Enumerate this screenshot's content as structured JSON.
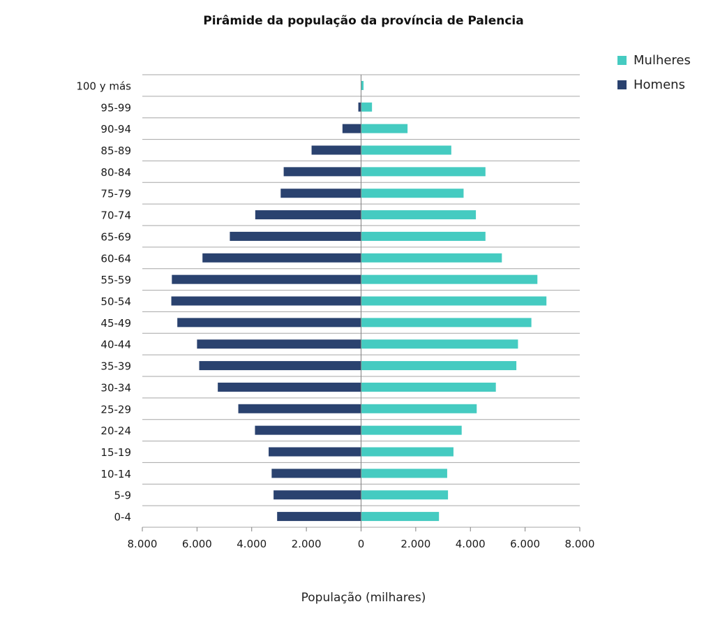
{
  "chart_data": {
    "type": "bar",
    "orientation": "horizontal-population-pyramid",
    "title": "Pirâmide da população da província de Palencia",
    "xlabel": "População (milhares)",
    "ylabel": "",
    "xlim": [
      -8000,
      8000
    ],
    "x_ticks": [
      -8000,
      -6000,
      -4000,
      -2000,
      0,
      2000,
      4000,
      6000,
      8000
    ],
    "x_tick_labels": [
      "8.000",
      "6.000",
      "4.000",
      "2.000",
      "0",
      "2.000",
      "4.000",
      "6.000",
      "8.000"
    ],
    "categories": [
      "100 y más",
      "95-99",
      "90-94",
      "85-89",
      "80-84",
      "75-79",
      "70-74",
      "65-69",
      "60-64",
      "55-59",
      "50-54",
      "45-49",
      "40-44",
      "35-39",
      "30-34",
      "25-29",
      "20-24",
      "15-19",
      "10-14",
      "5-9",
      "0-4"
    ],
    "series": [
      {
        "name": "Mulheres",
        "color": "#45cbc1",
        "side": "right",
        "values": [
          90,
          400,
          1700,
          3300,
          4550,
          3750,
          4200,
          4550,
          5150,
          6450,
          6780,
          6230,
          5740,
          5680,
          4930,
          4230,
          3680,
          3380,
          3150,
          3180,
          2850
        ]
      },
      {
        "name": "Homens",
        "color": "#2a426f",
        "side": "left",
        "values": [
          0,
          100,
          680,
          1810,
          2830,
          2940,
          3870,
          4800,
          5800,
          6920,
          6940,
          6720,
          6000,
          5920,
          5240,
          4490,
          3880,
          3380,
          3270,
          3200,
          3070
        ]
      }
    ],
    "legend_position": "top-right",
    "grid": true
  },
  "colors": {
    "grid": "#a6a6a6",
    "axis": "#7f7f7f",
    "text": "#1a1a1a"
  }
}
